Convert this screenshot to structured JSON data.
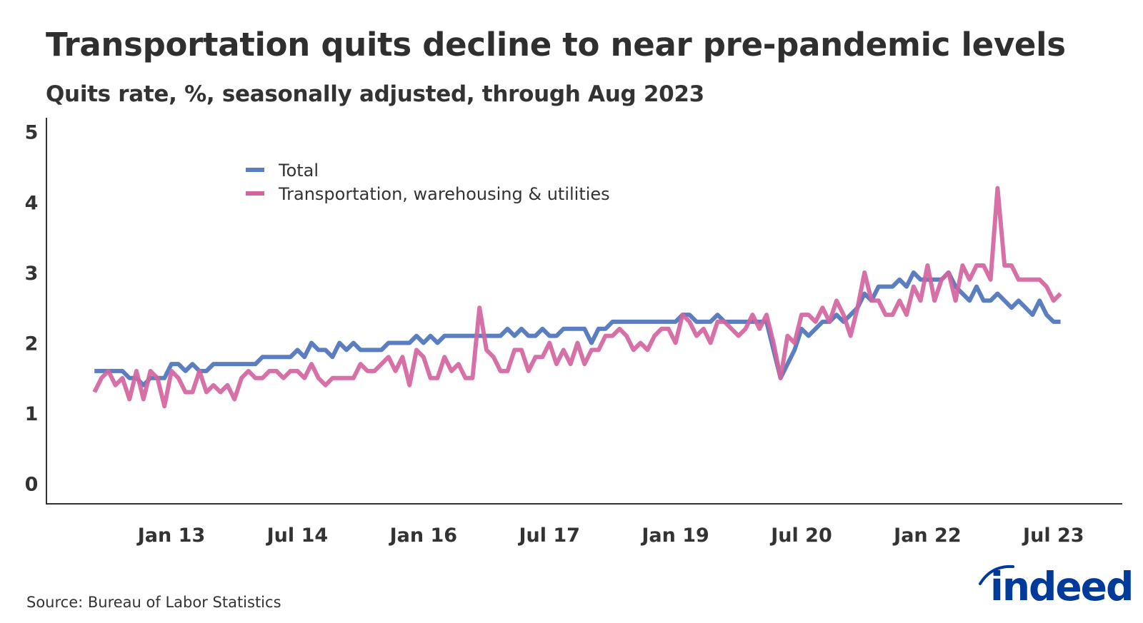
{
  "title": "Transportation quits decline to near pre-pandemic levels",
  "subtitle": "Quits rate, %, seasonally adjusted, through Aug 2023",
  "source": "Source: Bureau of Labor Statistics",
  "logo": "indeed",
  "colors": {
    "total": "#5b7ec0",
    "transportation": "#d4649e",
    "logo": "#003a9b",
    "text": "#333333"
  },
  "chart_data": {
    "type": "line",
    "title": "Transportation quits decline to near pre-pandemic levels",
    "subtitle": "Quits rate, %, seasonally adjusted, through Aug 2023",
    "xlabel": "",
    "ylabel": "",
    "x_start": "Feb 2012",
    "x_end": "Aug 2023",
    "x_frequency": "monthly",
    "ylim": [
      0,
      5
    ],
    "yticks": [
      "0",
      "1",
      "2",
      "3",
      "4",
      "5"
    ],
    "xticks": [
      {
        "label": "Jan 13",
        "month_index": 11
      },
      {
        "label": "Jul 14",
        "month_index": 29
      },
      {
        "label": "Jan 16",
        "month_index": 47
      },
      {
        "label": "Jul 17",
        "month_index": 65
      },
      {
        "label": "Jan 19",
        "month_index": 83
      },
      {
        "label": "Jul 20",
        "month_index": 101
      },
      {
        "label": "Jan 22",
        "month_index": 119
      },
      {
        "label": "Jul 23",
        "month_index": 137
      }
    ],
    "grid": false,
    "legend_position": "top-left",
    "series": [
      {
        "name": "Total",
        "color": "#5b7ec0",
        "values": [
          1.6,
          1.6,
          1.6,
          1.6,
          1.6,
          1.5,
          1.5,
          1.4,
          1.5,
          1.5,
          1.5,
          1.7,
          1.7,
          1.6,
          1.7,
          1.6,
          1.6,
          1.7,
          1.7,
          1.7,
          1.7,
          1.7,
          1.7,
          1.7,
          1.8,
          1.8,
          1.8,
          1.8,
          1.8,
          1.9,
          1.8,
          2.0,
          1.9,
          1.9,
          1.8,
          2.0,
          1.9,
          2.0,
          1.9,
          1.9,
          1.9,
          1.9,
          2.0,
          2.0,
          2.0,
          2.0,
          2.1,
          2.0,
          2.1,
          2.0,
          2.1,
          2.1,
          2.1,
          2.1,
          2.1,
          2.1,
          2.1,
          2.1,
          2.1,
          2.2,
          2.1,
          2.2,
          2.1,
          2.1,
          2.2,
          2.1,
          2.1,
          2.2,
          2.2,
          2.2,
          2.2,
          2.0,
          2.2,
          2.2,
          2.3,
          2.3,
          2.3,
          2.3,
          2.3,
          2.3,
          2.3,
          2.3,
          2.3,
          2.3,
          2.4,
          2.4,
          2.3,
          2.3,
          2.3,
          2.4,
          2.3,
          2.3,
          2.3,
          2.3,
          2.3,
          2.3,
          2.3,
          1.9,
          1.5,
          1.7,
          1.9,
          2.2,
          2.1,
          2.2,
          2.3,
          2.3,
          2.4,
          2.3,
          2.4,
          2.5,
          2.7,
          2.6,
          2.8,
          2.8,
          2.8,
          2.9,
          2.8,
          3.0,
          2.9,
          2.9,
          2.9,
          2.9,
          3.0,
          2.8,
          2.7,
          2.6,
          2.8,
          2.6,
          2.6,
          2.7,
          2.6,
          2.5,
          2.6,
          2.5,
          2.4,
          2.6,
          2.4,
          2.3,
          2.3
        ]
      },
      {
        "name": "Transportation, warehousing & utilities",
        "color": "#d4649e",
        "values": [
          1.3,
          1.5,
          1.6,
          1.4,
          1.5,
          1.2,
          1.6,
          1.2,
          1.6,
          1.5,
          1.1,
          1.6,
          1.5,
          1.3,
          1.3,
          1.6,
          1.3,
          1.4,
          1.3,
          1.4,
          1.2,
          1.5,
          1.6,
          1.5,
          1.5,
          1.6,
          1.6,
          1.5,
          1.6,
          1.6,
          1.5,
          1.7,
          1.5,
          1.4,
          1.5,
          1.5,
          1.5,
          1.5,
          1.7,
          1.6,
          1.6,
          1.7,
          1.8,
          1.6,
          1.8,
          1.4,
          1.9,
          1.8,
          1.5,
          1.5,
          1.8,
          1.6,
          1.7,
          1.5,
          1.5,
          2.5,
          1.9,
          1.8,
          1.6,
          1.6,
          1.9,
          1.9,
          1.6,
          1.8,
          1.8,
          2.0,
          1.7,
          1.9,
          1.7,
          2.0,
          1.7,
          1.9,
          1.9,
          2.1,
          2.1,
          2.2,
          2.1,
          1.9,
          2.0,
          1.9,
          2.1,
          2.2,
          2.2,
          2.0,
          2.4,
          2.3,
          2.1,
          2.2,
          2.0,
          2.3,
          2.3,
          2.2,
          2.1,
          2.2,
          2.4,
          2.2,
          2.4,
          2.0,
          1.5,
          2.1,
          2.0,
          2.4,
          2.4,
          2.3,
          2.5,
          2.3,
          2.6,
          2.4,
          2.1,
          2.5,
          3.0,
          2.6,
          2.6,
          2.4,
          2.4,
          2.6,
          2.4,
          2.8,
          2.6,
          3.1,
          2.6,
          2.9,
          3.0,
          2.6,
          3.1,
          2.9,
          3.1,
          3.1,
          2.9,
          4.2,
          3.1,
          3.1,
          2.9,
          2.9,
          2.9,
          2.9,
          2.8,
          2.6,
          2.7
        ]
      }
    ]
  }
}
